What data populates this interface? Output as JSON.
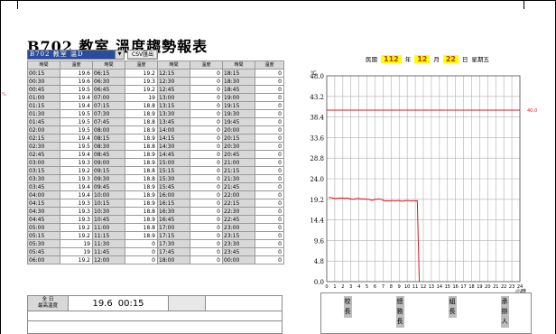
{
  "title": "B702 教室 溫度趨勢報表",
  "toolbar": {
    "room_selected": "B702 教室 溫D",
    "csv_label": "CSV匯出"
  },
  "date_line": {
    "era": "民國",
    "year": "112",
    "year_unit": "年",
    "month": "12",
    "month_unit": "月",
    "day": "22",
    "day_unit": "日",
    "weekday": "星期五"
  },
  "side_mark": "%",
  "table": {
    "headers": [
      "時間",
      "溫度",
      "時間",
      "溫度",
      "時間",
      "溫度",
      "時間",
      "溫度"
    ],
    "rows": [
      [
        "00:15",
        "19.6",
        "06:15",
        "19.2",
        "12:15",
        "0",
        "18:15",
        "0"
      ],
      [
        "00:30",
        "19.6",
        "06:30",
        "19.3",
        "12:30",
        "0",
        "18:30",
        "0"
      ],
      [
        "00:45",
        "19.5",
        "06:45",
        "19.2",
        "12:45",
        "0",
        "18:45",
        "0"
      ],
      [
        "01:00",
        "19.4",
        "07:00",
        "19",
        "13:00",
        "0",
        "19:00",
        "0"
      ],
      [
        "01:15",
        "19.4",
        "07:15",
        "18.8",
        "13:15",
        "0",
        "19:15",
        "0"
      ],
      [
        "01:30",
        "19.5",
        "07:30",
        "18.9",
        "13:30",
        "0",
        "19:30",
        "0"
      ],
      [
        "01:45",
        "19.5",
        "07:45",
        "18.8",
        "13:45",
        "0",
        "19:45",
        "0"
      ],
      [
        "02:00",
        "19.5",
        "08:00",
        "18.9",
        "14:00",
        "0",
        "20:00",
        "0"
      ],
      [
        "02:15",
        "19.4",
        "08:15",
        "18.9",
        "14:15",
        "0",
        "20:15",
        "0"
      ],
      [
        "02:30",
        "19.5",
        "08:30",
        "18.8",
        "14:30",
        "0",
        "20:30",
        "0"
      ],
      [
        "02:45",
        "19.4",
        "08:45",
        "18.9",
        "14:45",
        "0",
        "20:45",
        "0"
      ],
      [
        "03:00",
        "19.3",
        "09:00",
        "18.9",
        "15:00",
        "0",
        "21:00",
        "0"
      ],
      [
        "03:15",
        "19.2",
        "09:15",
        "18.8",
        "15:15",
        "0",
        "21:15",
        "0"
      ],
      [
        "03:30",
        "19.3",
        "09:30",
        "18.8",
        "15:30",
        "0",
        "21:30",
        "0"
      ],
      [
        "03:45",
        "19.4",
        "09:45",
        "18.9",
        "15:45",
        "0",
        "21:45",
        "0"
      ],
      [
        "04:00",
        "19.4",
        "10:00",
        "18.9",
        "16:00",
        "0",
        "22:00",
        "0"
      ],
      [
        "04:15",
        "19.3",
        "10:15",
        "18.9",
        "16:15",
        "0",
        "22:15",
        "0"
      ],
      [
        "04:30",
        "19.3",
        "10:30",
        "18.8",
        "16:30",
        "0",
        "22:30",
        "0"
      ],
      [
        "04:45",
        "19.3",
        "10:45",
        "18.9",
        "16:45",
        "0",
        "22:45",
        "0"
      ],
      [
        "05:00",
        "19.2",
        "11:00",
        "18.8",
        "17:00",
        "0",
        "23:00",
        "0"
      ],
      [
        "05:15",
        "19.2",
        "11:15",
        "18.9",
        "17:15",
        "0",
        "23:15",
        "0"
      ],
      [
        "05:30",
        "19",
        "11:30",
        "0",
        "17:30",
        "0",
        "23:30",
        "0"
      ],
      [
        "05:45",
        "19",
        "11:45",
        "0",
        "17:45",
        "0",
        "23:45",
        "0"
      ],
      [
        "06:00",
        "19.2",
        "12:00",
        "0",
        "18:00",
        "0",
        "00:00",
        "0"
      ]
    ]
  },
  "summary": {
    "label_line1": "全  日",
    "label_line2": "最高溫度",
    "max_value": "19.6",
    "max_time": "00:15"
  },
  "stamps": [
    {
      "chars": [
        "校",
        "長"
      ]
    },
    {
      "chars": [
        "總",
        "務",
        "長"
      ]
    },
    {
      "chars": [
        "組",
        "長"
      ]
    },
    {
      "chars": [
        "承",
        "辦",
        "人"
      ]
    }
  ],
  "colors": {
    "series": "#e0141e",
    "threshold": "#e0141e",
    "grid": "#b0b0b0",
    "highlight": "#ffff00"
  },
  "chart_data": {
    "type": "line",
    "title": "",
    "ylabel": "℃",
    "xlabel": "小時",
    "xlim": [
      0,
      24
    ],
    "ylim": [
      0,
      48
    ],
    "y_ticks": [
      "0.0",
      "4.8",
      "9.6",
      "14.4",
      "19.2",
      "24.0",
      "28.8",
      "33.6",
      "38.4",
      "43.2",
      "48.0"
    ],
    "x_ticks": [
      "0",
      "1",
      "2",
      "3",
      "4",
      "5",
      "6",
      "7",
      "8",
      "9",
      "10",
      "11",
      "12",
      "13",
      "14",
      "15",
      "16",
      "17",
      "18",
      "19",
      "20",
      "21",
      "22",
      "23",
      "24"
    ],
    "threshold": {
      "value": 40.0,
      "label": "40.0"
    },
    "grid": true,
    "series": [
      {
        "x": [
          0.25,
          0.5,
          0.75,
          1.0,
          1.25,
          1.5,
          1.75,
          2.0,
          2.25,
          2.5,
          2.75,
          3.0,
          3.25,
          3.5,
          3.75,
          4.0,
          4.25,
          4.5,
          4.75,
          5.0,
          5.25,
          5.5,
          5.75,
          6.0,
          6.25,
          6.5,
          6.75,
          7.0,
          7.25,
          7.5,
          7.75,
          8.0,
          8.25,
          8.5,
          8.75,
          9.0,
          9.25,
          9.5,
          9.75,
          10.0,
          10.25,
          10.5,
          10.75,
          11.0,
          11.25,
          11.5
        ],
        "y": [
          19.6,
          19.6,
          19.5,
          19.4,
          19.4,
          19.5,
          19.5,
          19.5,
          19.4,
          19.5,
          19.4,
          19.3,
          19.2,
          19.3,
          19.4,
          19.4,
          19.3,
          19.3,
          19.3,
          19.2,
          19.2,
          19.0,
          19.0,
          19.2,
          19.2,
          19.3,
          19.2,
          19.0,
          18.8,
          18.9,
          18.8,
          18.9,
          18.9,
          18.8,
          18.9,
          18.9,
          18.8,
          18.8,
          18.9,
          18.9,
          18.9,
          18.8,
          18.9,
          18.8,
          18.9,
          0
        ]
      }
    ]
  }
}
